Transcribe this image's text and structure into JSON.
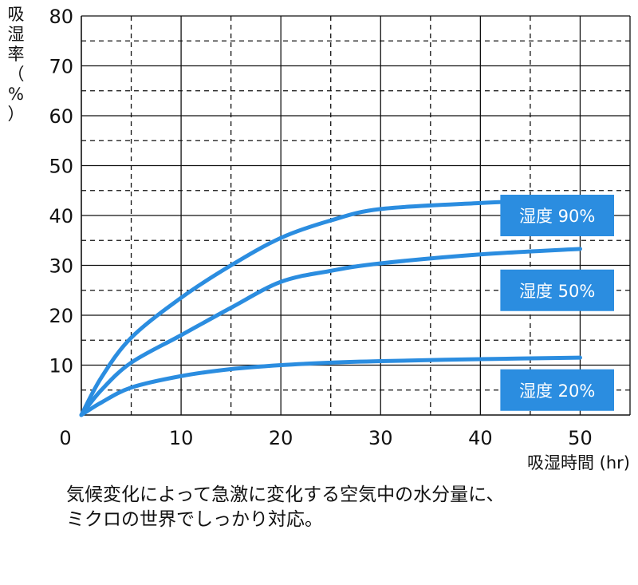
{
  "chart_data": {
    "type": "line",
    "ylabel_chars": [
      "吸",
      "湿",
      "率",
      "（",
      "%",
      "）"
    ],
    "xlabel": "吸湿時間 (hr)",
    "x_ticks": [
      0,
      10,
      20,
      30,
      40,
      50
    ],
    "y_ticks": [
      10,
      20,
      30,
      40,
      50,
      60,
      70,
      80
    ],
    "xlim": [
      0,
      55
    ],
    "ylim": [
      0,
      80
    ],
    "grid": true,
    "series": [
      {
        "name": "湿度 90%",
        "x": [
          0,
          2,
          5,
          10,
          15,
          20,
          25,
          30,
          40,
          50
        ],
        "y": [
          0,
          7.5,
          15.5,
          23.5,
          30,
          35.5,
          39,
          41.3,
          42.5,
          43.3
        ]
      },
      {
        "name": "湿度 50%",
        "x": [
          0,
          2,
          5,
          10,
          15,
          20,
          25,
          30,
          40,
          50
        ],
        "y": [
          0,
          5,
          10.5,
          16,
          21.5,
          26.7,
          28.9,
          30.4,
          32.2,
          33.3
        ]
      },
      {
        "name": "湿度 20%",
        "x": [
          0,
          2,
          5,
          10,
          15,
          20,
          25,
          30,
          40,
          50
        ],
        "y": [
          0,
          2.5,
          5.5,
          7.8,
          9.2,
          10,
          10.5,
          10.8,
          11.2,
          11.5
        ]
      }
    ],
    "colors": {
      "line": "#2b8de0",
      "label_bg": "#2b8de0",
      "grid": "#111111"
    }
  },
  "caption": {
    "line1": "気候変化によって急激に変化する空気中の水分量に、",
    "line2": "ミクロの世界でしっかり対応。"
  }
}
